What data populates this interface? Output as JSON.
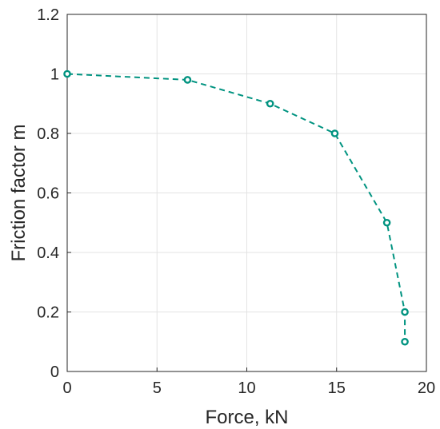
{
  "chart_data": {
    "type": "line",
    "title": "",
    "xlabel": "Force, kN",
    "ylabel": "Friction factor m",
    "xlim": [
      0,
      20
    ],
    "ylim": [
      0,
      1.2
    ],
    "xticks": [
      0,
      5,
      10,
      15,
      20
    ],
    "yticks": [
      0,
      0.2,
      0.4,
      0.6,
      0.8,
      1,
      1.2
    ],
    "xtick_labels": [
      "0",
      "5",
      "10",
      "15",
      "20"
    ],
    "ytick_labels": [
      "0",
      "0.2",
      "0.4",
      "0.6",
      "0.8",
      "1",
      "1.2"
    ],
    "grid": true,
    "legend": "none",
    "series": [
      {
        "color": "#009380",
        "line_style": "dashed",
        "marker": "circle",
        "points": [
          {
            "x": 0,
            "y": 1.0
          },
          {
            "x": 6.7,
            "y": 0.98
          },
          {
            "x": 11.3,
            "y": 0.9
          },
          {
            "x": 14.9,
            "y": 0.8
          },
          {
            "x": 17.8,
            "y": 0.5
          },
          {
            "x": 18.8,
            "y": 0.2
          },
          {
            "x": 18.8,
            "y": 0.1
          }
        ]
      }
    ]
  }
}
